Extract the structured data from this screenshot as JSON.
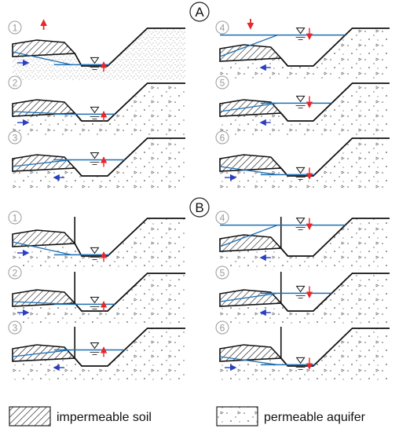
{
  "section_labels": [
    "A",
    "B"
  ],
  "panel_numbers": [
    "1",
    "2",
    "3",
    "4",
    "5",
    "6"
  ],
  "legend": {
    "impermeable": "impermeable soil",
    "permeable": "permeable aquifer"
  },
  "colors": {
    "water_line": "#1f6fb3",
    "flow_arrow": "#2b3fc0",
    "level_arrow": "#e8262b",
    "outline": "#111111",
    "circle_number": "#9a9a9a"
  },
  "icons": [
    "water-level-triangle-icon",
    "flow-arrow-icon",
    "level-change-arrow-icon"
  ]
}
